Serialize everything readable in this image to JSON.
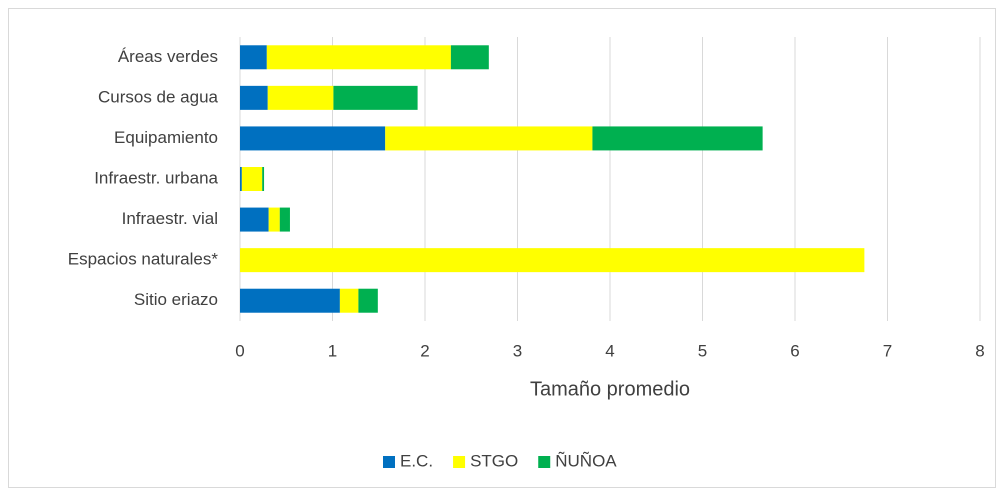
{
  "chart_data": {
    "type": "bar",
    "orientation": "horizontal",
    "stacked": true,
    "x_label": "Tamaño promedio",
    "categories": [
      "Áreas verdes",
      "Cursos de agua",
      "Equipamiento",
      "Infraestr. urbana",
      "Infraestr. vial",
      "Espacios naturales*",
      "Sitio eriazo"
    ],
    "series": [
      {
        "name": "E.C.",
        "color": "#0070c0",
        "values": [
          0.29,
          0.3,
          1.57,
          0.02,
          0.31,
          0,
          1.08
        ]
      },
      {
        "name": "STGO",
        "color": "#ffff00",
        "values": [
          1.99,
          0.71,
          2.24,
          0.22,
          0.12,
          6.75,
          0.2
        ]
      },
      {
        "name": "ÑUÑOA",
        "color": "#00b050",
        "values": [
          0.41,
          0.91,
          1.84,
          0.02,
          0.11,
          0,
          0.21
        ]
      }
    ],
    "xlim": [
      0,
      8
    ],
    "xticks": [
      0,
      1,
      2,
      3,
      4,
      5,
      6,
      7,
      8
    ],
    "grid": true,
    "legend": "bottom"
  }
}
